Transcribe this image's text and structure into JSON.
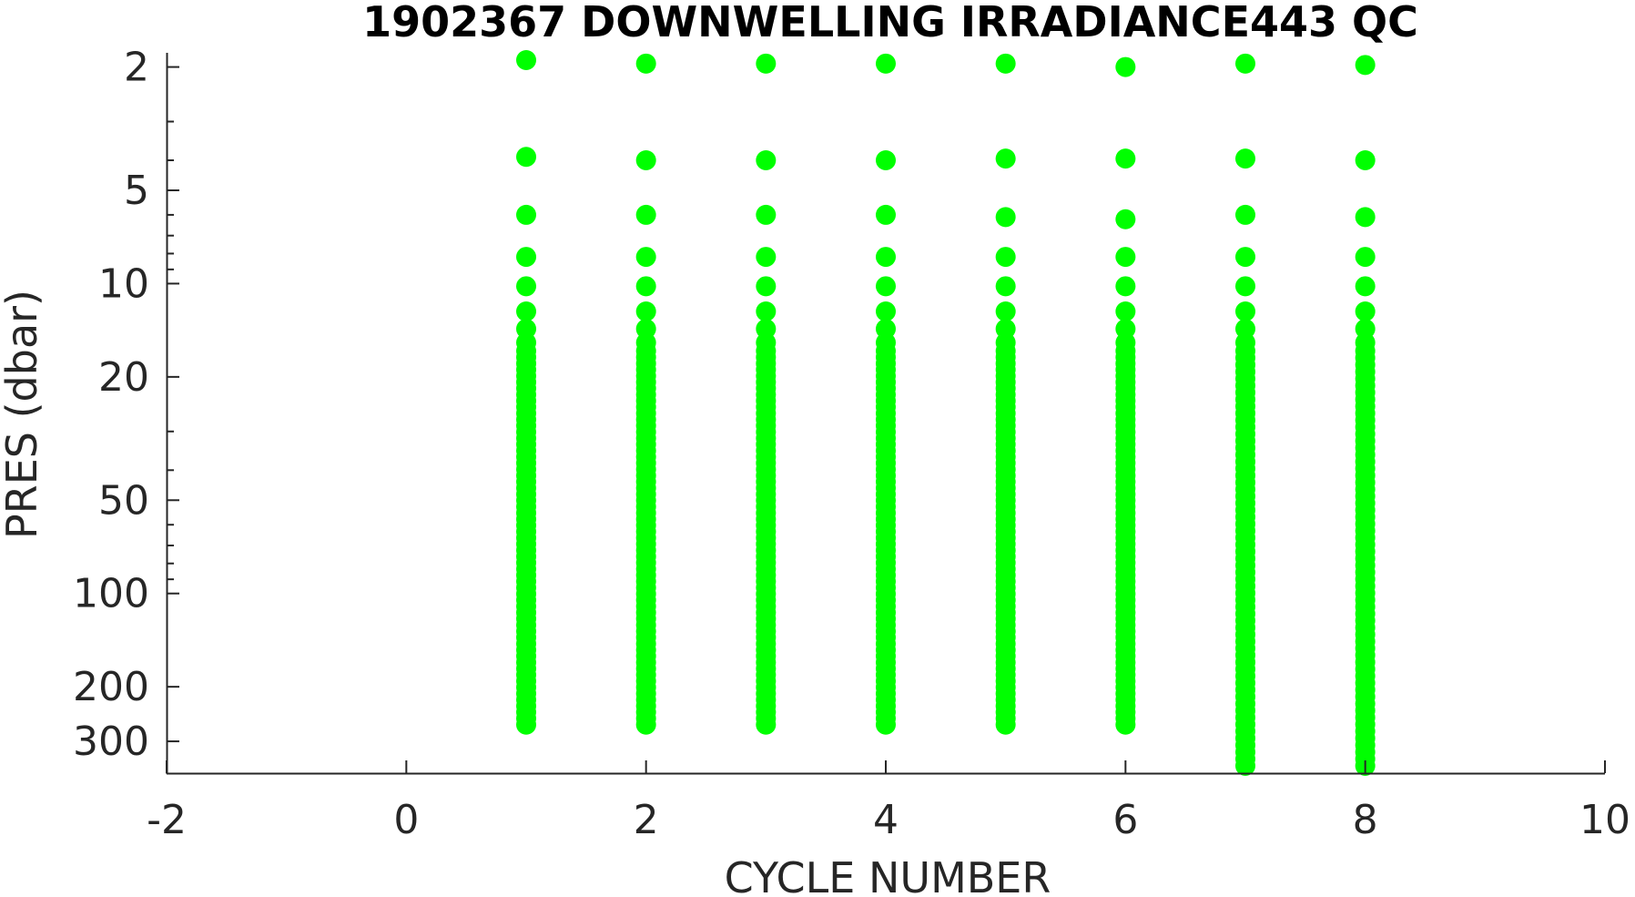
{
  "chart_data": {
    "type": "scatter",
    "title": "1902367  DOWNWELLING IRRADIANCE443 QC",
    "xlabel": "CYCLE NUMBER",
    "ylabel": "PRES (dbar)",
    "xlim": [
      -2,
      10
    ],
    "ylim": [
      1.8,
      380
    ],
    "y_scale": "log",
    "y_reversed": true,
    "grid": false,
    "legend": "none",
    "marker_color": "#00ff00",
    "x_ticks": [
      -2,
      0,
      2,
      4,
      6,
      8,
      10
    ],
    "x_tick_labels": [
      "-2",
      "0",
      "2",
      "4",
      "6",
      "8",
      "10"
    ],
    "y_ticks": [
      2,
      5,
      10,
      20,
      50,
      100,
      200,
      300
    ],
    "y_tick_labels": [
      "2",
      "5",
      "10",
      "20",
      "50",
      "100",
      "200",
      "300"
    ],
    "y_minor_ticks": [
      3,
      4,
      6,
      7,
      8,
      9,
      30,
      40,
      60,
      70,
      80,
      90
    ],
    "series": [
      {
        "x": 1,
        "top": [
          1.9,
          3.9,
          6.0,
          8.2,
          10.2,
          12.3,
          14.0,
          15.5
        ],
        "continuous_from": 16.5,
        "bottom": 265
      },
      {
        "x": 2,
        "top": [
          1.95,
          4.0,
          6.0,
          8.2,
          10.2,
          12.3,
          14.0,
          15.5
        ],
        "continuous_from": 16.5,
        "bottom": 265
      },
      {
        "x": 3,
        "top": [
          1.95,
          4.0,
          6.0,
          8.2,
          10.2,
          12.3,
          14.0,
          15.5
        ],
        "continuous_from": 16.5,
        "bottom": 265
      },
      {
        "x": 4,
        "top": [
          1.95,
          4.0,
          6.0,
          8.2,
          10.2,
          12.3,
          14.0,
          15.5
        ],
        "continuous_from": 16.5,
        "bottom": 265
      },
      {
        "x": 5,
        "top": [
          1.95,
          3.95,
          6.1,
          8.2,
          10.2,
          12.3,
          14.0,
          15.5
        ],
        "continuous_from": 16.5,
        "bottom": 265
      },
      {
        "x": 6,
        "top": [
          2.0,
          3.95,
          6.2,
          8.2,
          10.2,
          12.3,
          14.0,
          15.5
        ],
        "continuous_from": 16.5,
        "bottom": 265
      },
      {
        "x": 7,
        "top": [
          1.95,
          3.95,
          6.0,
          8.2,
          10.2,
          12.3,
          14.0,
          15.5
        ],
        "continuous_from": 16.5,
        "bottom": 360
      },
      {
        "x": 8,
        "top": [
          1.97,
          4.0,
          6.1,
          8.2,
          10.2,
          12.3,
          14.0,
          15.5
        ],
        "continuous_from": 16.5,
        "bottom": 360
      }
    ]
  }
}
